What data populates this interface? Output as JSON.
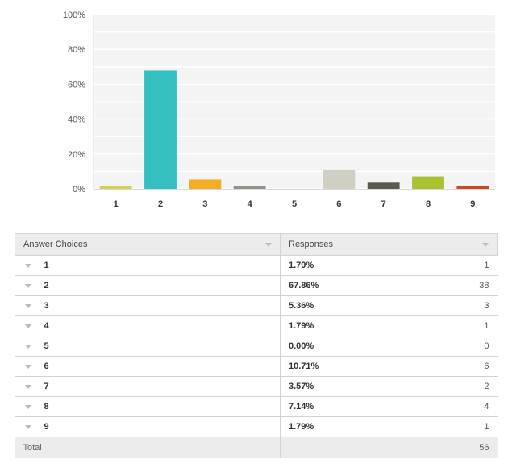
{
  "chart_data": {
    "type": "bar",
    "categories": [
      "1",
      "2",
      "3",
      "4",
      "5",
      "6",
      "7",
      "8",
      "9"
    ],
    "values": [
      1.79,
      67.86,
      5.36,
      1.79,
      0.0,
      10.71,
      3.57,
      7.14,
      1.79
    ],
    "colors": [
      "#d4d04e",
      "#35bfc1",
      "#f5ae23",
      "#8f9388",
      "#c8c8c8",
      "#d0cfc3",
      "#595b4b",
      "#a9c232",
      "#cc4a1f"
    ],
    "yticks": [
      "0%",
      "20%",
      "40%",
      "60%",
      "80%",
      "100%"
    ],
    "ylim": [
      0,
      100
    ],
    "grid": true,
    "title": "",
    "xlabel": "",
    "ylabel": ""
  },
  "table": {
    "headers": {
      "choices": "Answer Choices",
      "responses": "Responses"
    },
    "rows": [
      {
        "choice": "1",
        "pct": "1.79%",
        "count": "1"
      },
      {
        "choice": "2",
        "pct": "67.86%",
        "count": "38"
      },
      {
        "choice": "3",
        "pct": "5.36%",
        "count": "3"
      },
      {
        "choice": "4",
        "pct": "1.79%",
        "count": "1"
      },
      {
        "choice": "5",
        "pct": "0.00%",
        "count": "0"
      },
      {
        "choice": "6",
        "pct": "10.71%",
        "count": "6"
      },
      {
        "choice": "7",
        "pct": "3.57%",
        "count": "2"
      },
      {
        "choice": "8",
        "pct": "7.14%",
        "count": "4"
      },
      {
        "choice": "9",
        "pct": "1.79%",
        "count": "1"
      }
    ],
    "total_label": "Total",
    "total_count": "56"
  }
}
